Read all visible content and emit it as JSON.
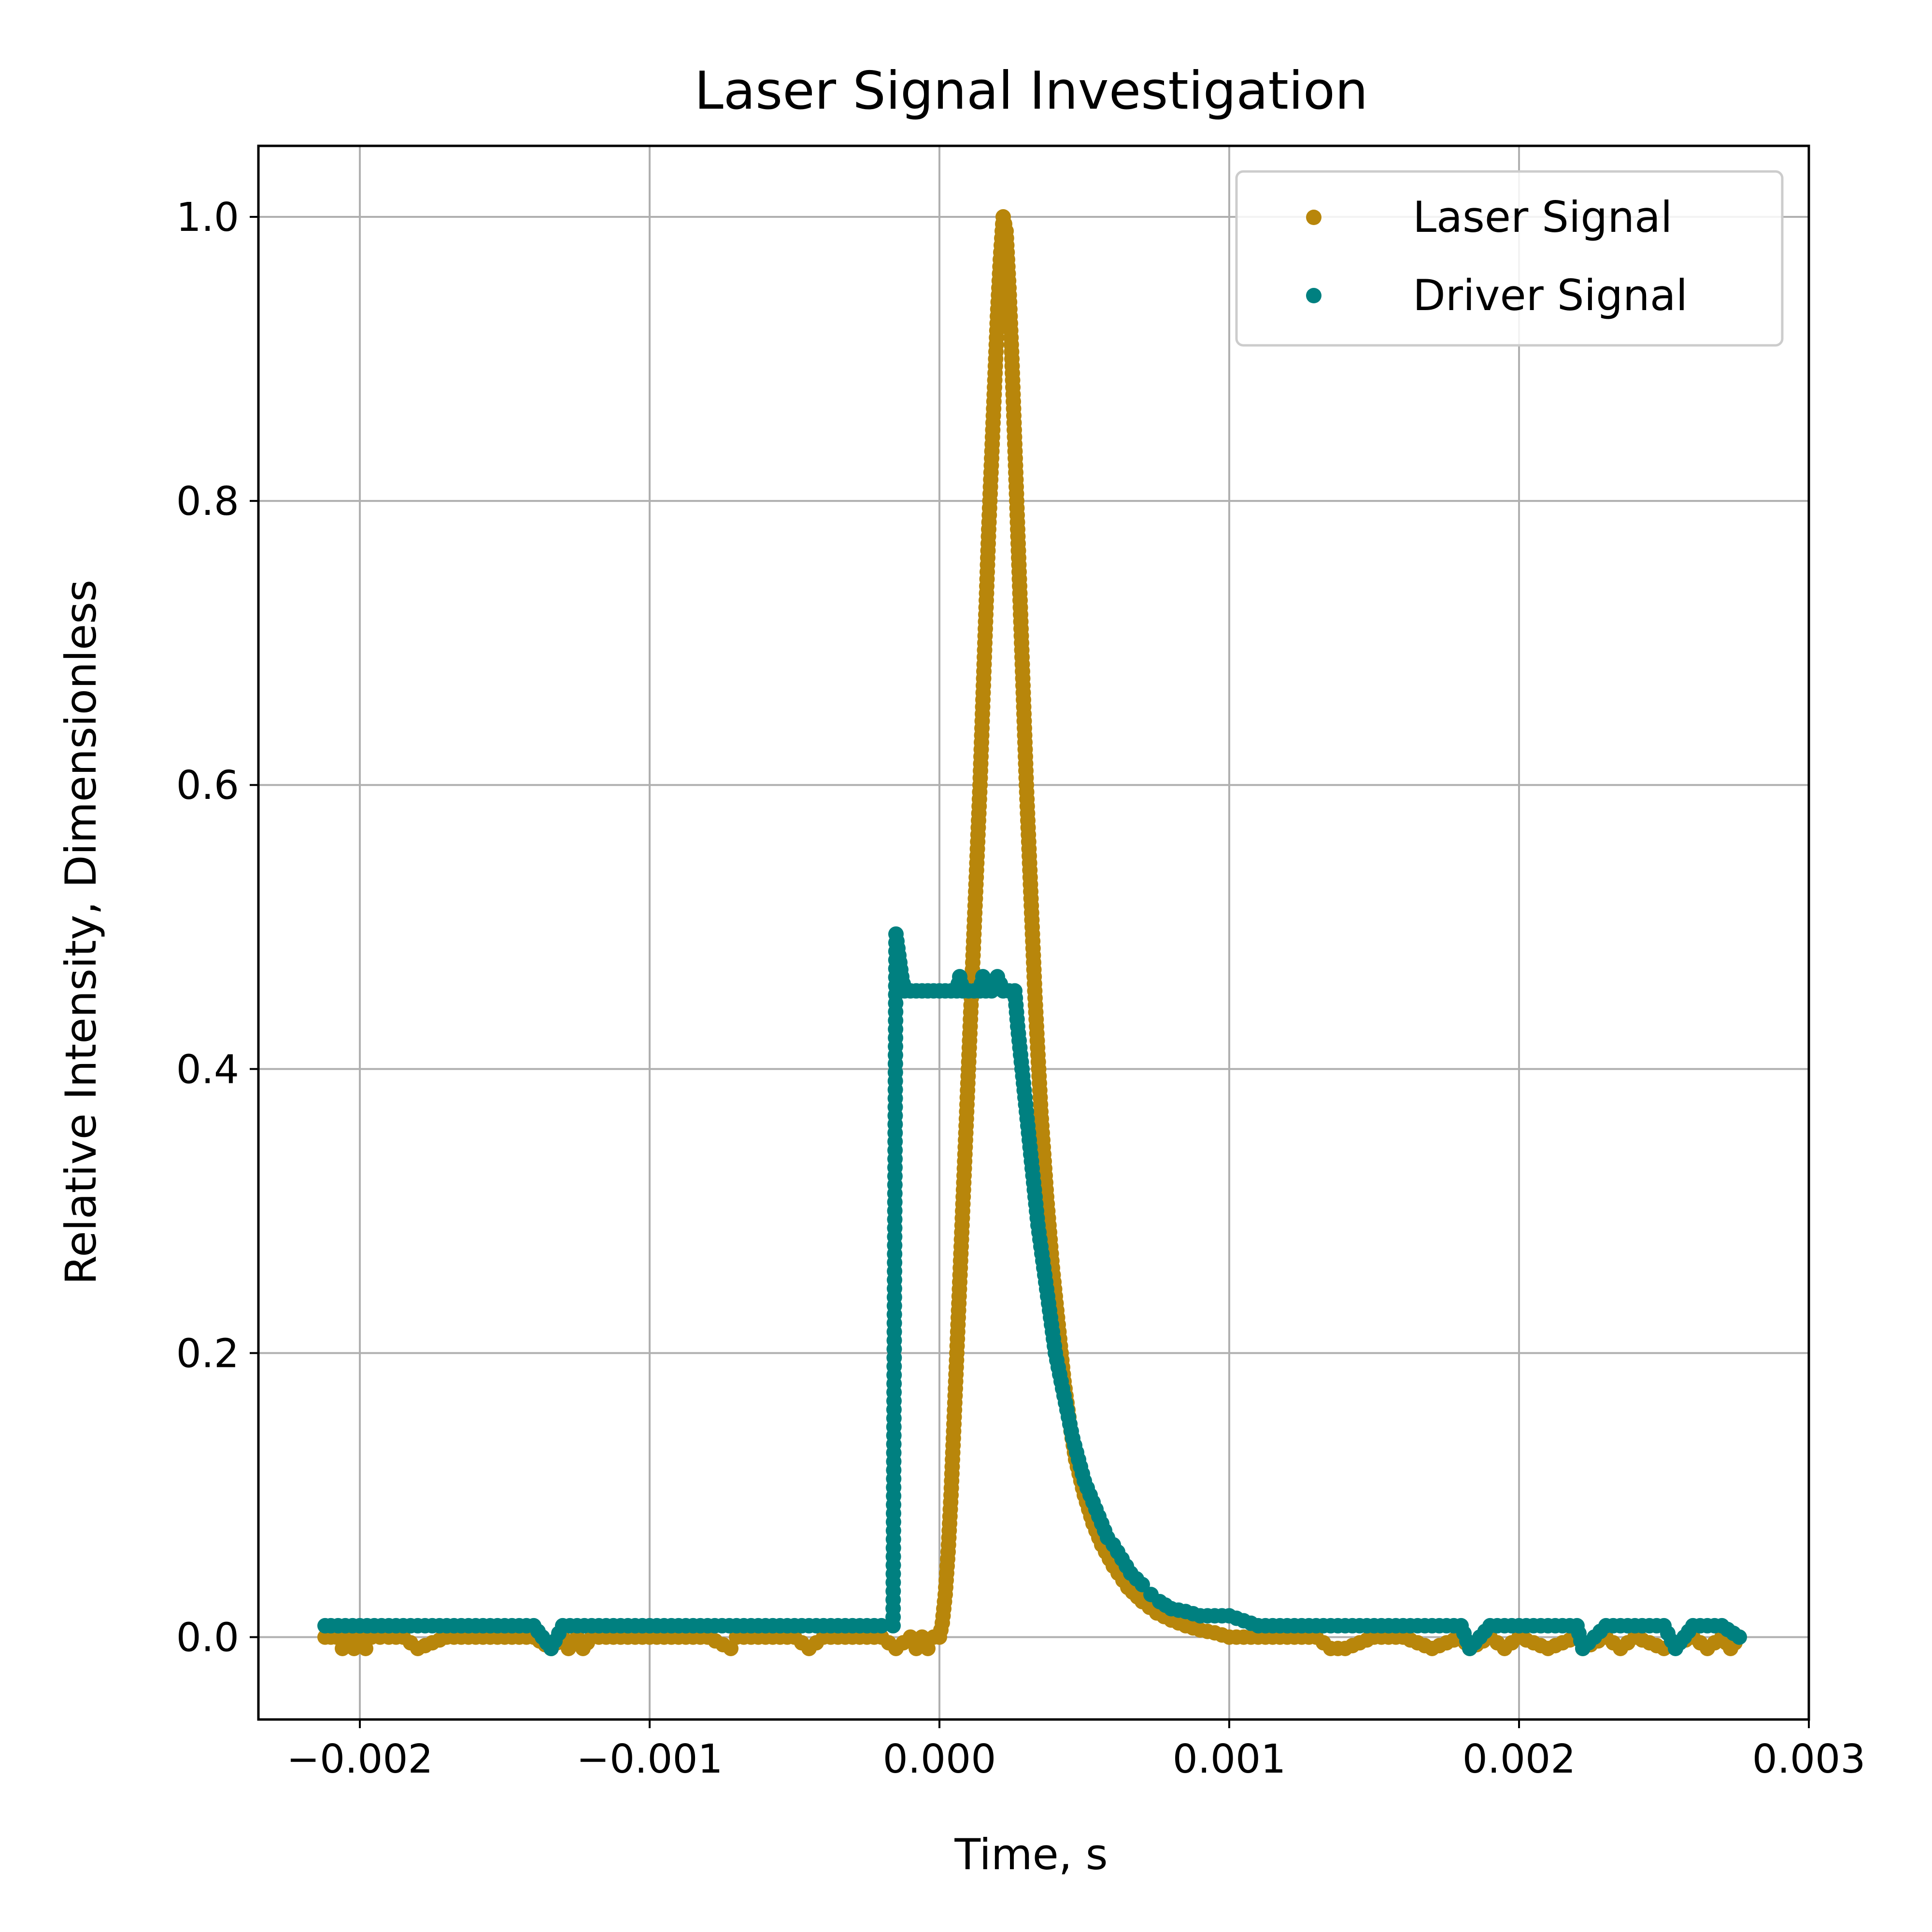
{
  "chart_data": {
    "type": "scatter",
    "title": "Laser Signal Investigation",
    "xlabel": "Time, s",
    "ylabel": "Relative Intensity, Dimensionless",
    "xlim": [
      -0.00235,
      0.003
    ],
    "ylim": [
      -0.058,
      1.05
    ],
    "x_ticks": [
      -0.002,
      -0.001,
      0.0,
      0.001,
      0.002,
      0.003
    ],
    "x_tick_labels": [
      "−0.002",
      "−0.001",
      "0.000",
      "0.001",
      "0.002",
      "0.003"
    ],
    "y_ticks": [
      0.0,
      0.2,
      0.4,
      0.6,
      0.8,
      1.0
    ],
    "y_tick_labels": [
      "0.0",
      "0.2",
      "0.4",
      "0.6",
      "0.8",
      "1.0"
    ],
    "grid": true,
    "legend_position": "top-right",
    "series": [
      {
        "name": "Laser Signal",
        "color": "#b8860b",
        "points": [
          [
            -0.00212,
            0.0
          ],
          [
            -0.0021,
            0.0
          ],
          [
            -0.00208,
            0.0
          ],
          [
            -0.00206,
            -0.008
          ],
          [
            -0.00204,
            0.0
          ],
          [
            -0.00202,
            -0.008
          ],
          [
            -0.002,
            0.0
          ],
          [
            -0.00198,
            -0.008
          ],
          [
            -0.00196,
            0.0
          ],
          [
            -0.0019,
            0.0
          ],
          [
            -0.00185,
            0.0
          ],
          [
            -0.0018,
            -0.008
          ],
          [
            -0.0017,
            0.0
          ],
          [
            -0.0016,
            0.0
          ],
          [
            -0.0015,
            0.0
          ],
          [
            -0.0014,
            0.0
          ],
          [
            -0.00134,
            -0.008
          ],
          [
            -0.0013,
            0.0
          ],
          [
            -0.00128,
            -0.008
          ],
          [
            -0.00125,
            0.0
          ],
          [
            -0.00123,
            -0.008
          ],
          [
            -0.0012,
            0.0
          ],
          [
            -0.0011,
            0.0
          ],
          [
            -0.001,
            0.0
          ],
          [
            -0.0009,
            0.0
          ],
          [
            -0.0008,
            0.0
          ],
          [
            -0.00072,
            -0.008
          ],
          [
            -0.0007,
            0.0
          ],
          [
            -0.0006,
            0.0
          ],
          [
            -0.0005,
            0.0
          ],
          [
            -0.00045,
            -0.008
          ],
          [
            -0.0004,
            0.0
          ],
          [
            -0.0003,
            0.0
          ],
          [
            -0.0002,
            0.0
          ],
          [
            -0.00015,
            -0.008
          ],
          [
            -0.0001,
            0.0
          ],
          [
            -8e-05,
            -0.008
          ],
          [
            -6e-05,
            0.0
          ],
          [
            -4e-05,
            -0.008
          ],
          [
            -2e-05,
            0.0
          ],
          [
            0.0,
            0.0
          ],
          [
            1e-05,
            0.01
          ],
          [
            2e-05,
            0.03
          ],
          [
            3e-05,
            0.06
          ],
          [
            4e-05,
            0.1
          ],
          [
            5e-05,
            0.15
          ],
          [
            6e-05,
            0.2
          ],
          [
            7e-05,
            0.25
          ],
          [
            8e-05,
            0.3
          ],
          [
            9e-05,
            0.35
          ],
          [
            0.0001,
            0.4
          ],
          [
            0.00011,
            0.45
          ],
          [
            0.00012,
            0.5
          ],
          [
            0.00013,
            0.55
          ],
          [
            0.00014,
            0.6
          ],
          [
            0.00015,
            0.66
          ],
          [
            0.00016,
            0.72
          ],
          [
            0.00017,
            0.78
          ],
          [
            0.00018,
            0.83
          ],
          [
            0.00019,
            0.88
          ],
          [
            0.0002,
            0.93
          ],
          [
            0.00021,
            0.97
          ],
          [
            0.00022,
            1.0
          ],
          [
            0.00023,
            0.99
          ],
          [
            0.00024,
            0.95
          ],
          [
            0.00025,
            0.9
          ],
          [
            0.00026,
            0.84
          ],
          [
            0.00027,
            0.78
          ],
          [
            0.00028,
            0.72
          ],
          [
            0.00029,
            0.66
          ],
          [
            0.0003,
            0.6
          ],
          [
            0.00031,
            0.55
          ],
          [
            0.00032,
            0.5
          ],
          [
            0.00033,
            0.45
          ],
          [
            0.00034,
            0.41
          ],
          [
            0.00035,
            0.37
          ],
          [
            0.00037,
            0.31
          ],
          [
            0.00039,
            0.26
          ],
          [
            0.00041,
            0.22
          ],
          [
            0.00043,
            0.18
          ],
          [
            0.00045,
            0.15
          ],
          [
            0.00047,
            0.125
          ],
          [
            0.0005,
            0.1
          ],
          [
            0.00053,
            0.08
          ],
          [
            0.00056,
            0.065
          ],
          [
            0.0006,
            0.05
          ],
          [
            0.00065,
            0.035
          ],
          [
            0.0007,
            0.025
          ],
          [
            0.00075,
            0.017
          ],
          [
            0.0008,
            0.012
          ],
          [
            0.00085,
            0.008
          ],
          [
            0.0009,
            0.005
          ],
          [
            0.00095,
            0.003
          ],
          [
            0.001,
            0.0
          ],
          [
            0.0011,
            0.0
          ],
          [
            0.0012,
            0.0
          ],
          [
            0.0013,
            0.0
          ],
          [
            0.00135,
            -0.008
          ],
          [
            0.0014,
            -0.008
          ],
          [
            0.0015,
            0.0
          ],
          [
            0.0016,
            0.0
          ],
          [
            0.0017,
            -0.008
          ],
          [
            0.0018,
            0.0
          ],
          [
            0.00183,
            -0.008
          ],
          [
            0.0019,
            0.0
          ],
          [
            0.00195,
            -0.008
          ],
          [
            0.002,
            0.0
          ],
          [
            0.0021,
            -0.008
          ],
          [
            0.0022,
            0.0
          ],
          [
            0.00222,
            -0.008
          ],
          [
            0.0023,
            0.0
          ],
          [
            0.00235,
            -0.008
          ],
          [
            0.0024,
            0.0
          ],
          [
            0.0025,
            -0.008
          ],
          [
            0.0026,
            0.0
          ],
          [
            0.00265,
            -0.008
          ],
          [
            0.0027,
            0.0
          ],
          [
            0.00273,
            -0.008
          ],
          [
            0.00276,
            0.0
          ]
        ]
      },
      {
        "name": "Driver Signal",
        "color": "#008080",
        "points": [
          [
            -0.00212,
            0.008
          ],
          [
            -0.0021,
            0.008
          ],
          [
            -0.002,
            0.008
          ],
          [
            -0.0019,
            0.008
          ],
          [
            -0.0018,
            0.008
          ],
          [
            -0.0017,
            0.008
          ],
          [
            -0.0016,
            0.008
          ],
          [
            -0.0015,
            0.008
          ],
          [
            -0.0014,
            0.008
          ],
          [
            -0.00134,
            -0.008
          ],
          [
            -0.0013,
            0.008
          ],
          [
            -0.0012,
            0.008
          ],
          [
            -0.0011,
            0.008
          ],
          [
            -0.001,
            0.008
          ],
          [
            -0.0009,
            0.008
          ],
          [
            -0.0008,
            0.008
          ],
          [
            -0.0007,
            0.008
          ],
          [
            -0.0006,
            0.008
          ],
          [
            -0.0005,
            0.008
          ],
          [
            -0.0004,
            0.008
          ],
          [
            -0.0003,
            0.008
          ],
          [
            -0.00025,
            0.008
          ],
          [
            -0.0002,
            0.008
          ],
          [
            -0.00016,
            0.008
          ],
          [
            -0.00015,
            0.495
          ],
          [
            -0.00014,
            0.48
          ],
          [
            -0.00013,
            0.465
          ],
          [
            -0.00012,
            0.455
          ],
          [
            -0.0001,
            0.455
          ],
          [
            -8e-05,
            0.455
          ],
          [
            -6e-05,
            0.455
          ],
          [
            -4e-05,
            0.455
          ],
          [
            -2e-05,
            0.455
          ],
          [
            0.0,
            0.455
          ],
          [
            2e-05,
            0.455
          ],
          [
            4e-05,
            0.455
          ],
          [
            6e-05,
            0.455
          ],
          [
            7e-05,
            0.465
          ],
          [
            8e-05,
            0.455
          ],
          [
            0.0001,
            0.455
          ],
          [
            0.00012,
            0.455
          ],
          [
            0.00014,
            0.455
          ],
          [
            0.00015,
            0.465
          ],
          [
            0.00016,
            0.455
          ],
          [
            0.00018,
            0.455
          ],
          [
            0.0002,
            0.465
          ],
          [
            0.00022,
            0.455
          ],
          [
            0.00024,
            0.455
          ],
          [
            0.00026,
            0.455
          ],
          [
            0.00027,
            0.43
          ],
          [
            0.00028,
            0.41
          ],
          [
            0.00029,
            0.39
          ],
          [
            0.0003,
            0.37
          ],
          [
            0.00031,
            0.35
          ],
          [
            0.00032,
            0.33
          ],
          [
            0.00033,
            0.31
          ],
          [
            0.00034,
            0.29
          ],
          [
            0.00035,
            0.275
          ],
          [
            0.00036,
            0.26
          ],
          [
            0.00037,
            0.245
          ],
          [
            0.00038,
            0.23
          ],
          [
            0.0004,
            0.2
          ],
          [
            0.00042,
            0.18
          ],
          [
            0.00044,
            0.16
          ],
          [
            0.00046,
            0.14
          ],
          [
            0.00048,
            0.125
          ],
          [
            0.0005,
            0.11
          ],
          [
            0.00052,
            0.1
          ],
          [
            0.00055,
            0.085
          ],
          [
            0.00058,
            0.07
          ],
          [
            0.0006,
            0.065
          ],
          [
            0.00063,
            0.055
          ],
          [
            0.00066,
            0.045
          ],
          [
            0.0007,
            0.037
          ],
          [
            0.00073,
            0.03
          ],
          [
            0.00076,
            0.025
          ],
          [
            0.0008,
            0.02
          ],
          [
            0.00085,
            0.018
          ],
          [
            0.0009,
            0.015
          ],
          [
            0.00095,
            0.015
          ],
          [
            0.001,
            0.015
          ],
          [
            0.0011,
            0.008
          ],
          [
            0.0012,
            0.008
          ],
          [
            0.0013,
            0.008
          ],
          [
            0.0014,
            0.008
          ],
          [
            0.0015,
            0.008
          ],
          [
            0.0016,
            0.008
          ],
          [
            0.0017,
            0.008
          ],
          [
            0.0018,
            0.008
          ],
          [
            0.00183,
            -0.008
          ],
          [
            0.0019,
            0.008
          ],
          [
            0.002,
            0.008
          ],
          [
            0.0021,
            0.008
          ],
          [
            0.0022,
            0.008
          ],
          [
            0.00222,
            -0.008
          ],
          [
            0.0023,
            0.008
          ],
          [
            0.0024,
            0.008
          ],
          [
            0.0025,
            0.008
          ],
          [
            0.00254,
            -0.008
          ],
          [
            0.0026,
            0.008
          ],
          [
            0.0027,
            0.008
          ],
          [
            0.00276,
            0.0
          ]
        ]
      }
    ]
  }
}
